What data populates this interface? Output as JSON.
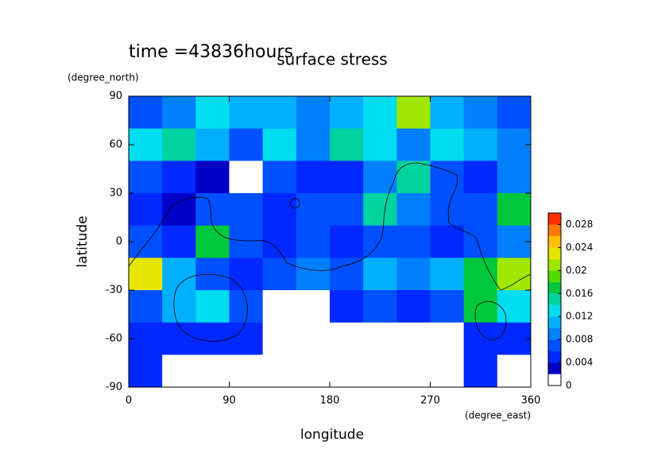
{
  "chart_data": {
    "type": "heatmap",
    "title": "surface stress",
    "subtitle": "time =43836hours",
    "x_label": "longitude",
    "y_label": "latitude",
    "x_unit": "(degree_east)",
    "y_unit": "(degree_north)",
    "xlim": [
      0,
      360
    ],
    "ylim": [
      -90,
      90
    ],
    "xticks": [
      0,
      90,
      180,
      270,
      360
    ],
    "yticks": [
      -90,
      -60,
      -30,
      0,
      30,
      60,
      90
    ],
    "x": [
      15,
      45,
      75,
      105,
      135,
      165,
      195,
      225,
      255,
      285,
      315,
      345
    ],
    "y": [
      80,
      60,
      40,
      20,
      0,
      -20,
      -40,
      -60,
      -80
    ],
    "z": [
      [
        0.006,
        0.008,
        0.012,
        0.01,
        0.01,
        0.008,
        0.01,
        0.012,
        0.02,
        0.01,
        0.008,
        0.006
      ],
      [
        0.012,
        0.014,
        0.01,
        0.006,
        0.012,
        0.008,
        0.014,
        0.012,
        0.008,
        0.012,
        0.01,
        0.008
      ],
      [
        0.006,
        0.004,
        0.003,
        0.001,
        0.006,
        0.004,
        0.004,
        0.008,
        0.014,
        0.006,
        0.004,
        0.008
      ],
      [
        0.004,
        0.003,
        0.006,
        0.006,
        0.004,
        0.006,
        0.006,
        0.014,
        0.008,
        0.006,
        0.006,
        0.016
      ],
      [
        0.006,
        0.004,
        0.016,
        0.006,
        0.004,
        0.006,
        0.004,
        0.006,
        0.006,
        0.004,
        0.006,
        0.008
      ],
      [
        0.022,
        0.01,
        0.006,
        0.004,
        0.006,
        0.008,
        0.006,
        0.01,
        0.008,
        0.01,
        0.016,
        0.02
      ],
      [
        0.006,
        0.01,
        0.012,
        0.006,
        0.001,
        0.001,
        0.004,
        0.006,
        0.004,
        0.006,
        0.016,
        0.012
      ],
      [
        0.004,
        0.004,
        0.004,
        0.004,
        0.001,
        0.001,
        0.001,
        0.001,
        0.001,
        0.001,
        0.004,
        0.004
      ],
      [
        0.004,
        0.001,
        0.001,
        0.001,
        0.001,
        0.001,
        0.001,
        0.001,
        0.001,
        0.001,
        0.004,
        0.001
      ]
    ],
    "colorbar": {
      "levels": [
        0,
        0.002,
        0.004,
        0.006,
        0.008,
        0.01,
        0.012,
        0.014,
        0.016,
        0.018,
        0.02,
        0.022,
        0.024,
        0.026,
        0.028,
        0.03
      ],
      "colors": [
        "#ffffff",
        "#0000c8",
        "#0028ff",
        "#0050ff",
        "#0080ff",
        "#00b0ff",
        "#00dcf0",
        "#00d2a0",
        "#00c83c",
        "#50dc00",
        "#a0e600",
        "#e6e600",
        "#ffc000",
        "#ff7800",
        "#ff3000"
      ],
      "ticks": [
        0,
        0.004,
        0.008,
        0.012,
        0.016,
        0.02,
        0.024,
        0.028
      ]
    }
  }
}
